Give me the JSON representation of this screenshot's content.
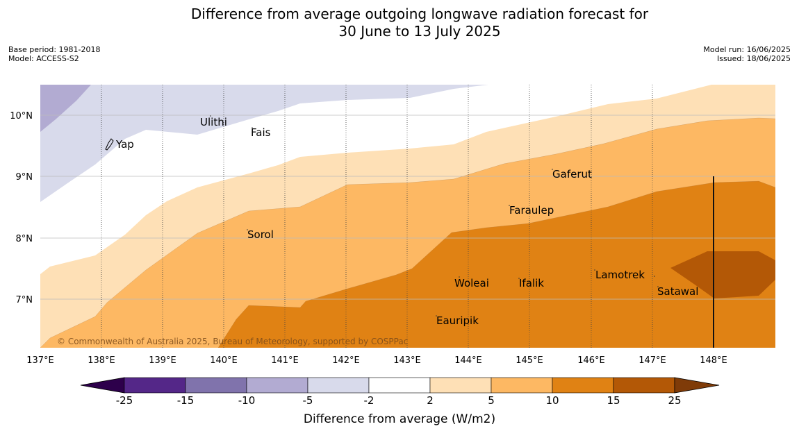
{
  "header": {
    "title_line1": "Difference from average outgoing longwave radiation forecast for",
    "title_line2": "30 June to 13 July 2025",
    "base_period": "Base period: 1981-2018",
    "model": "Model: ACCESS-S2",
    "model_run": "Model run: 16/06/2025",
    "issued": "Issued: 18/06/2025"
  },
  "map": {
    "lon_ticks": [
      "137°E",
      "138°E",
      "139°E",
      "140°E",
      "141°E",
      "142°E",
      "143°E",
      "144°E",
      "145°E",
      "146°E",
      "147°E",
      "148°E"
    ],
    "lat_ticks": [
      "10°N",
      "9°N",
      "8°N",
      "7°N"
    ],
    "places": [
      {
        "name": "Ulithi"
      },
      {
        "name": "Fais"
      },
      {
        "name": "Yap"
      },
      {
        "name": "Gaferut"
      },
      {
        "name": "Faraulep"
      },
      {
        "name": "Sorol"
      },
      {
        "name": "Woleai"
      },
      {
        "name": "Ifalik"
      },
      {
        "name": "Lamotrek"
      },
      {
        "name": "Satawal"
      },
      {
        "name": "Eauripik"
      }
    ],
    "copyright": "© Commonwealth of Australia 2025, Bureau of Meteorology, supported by COSPPac"
  },
  "colorbar": {
    "title": "Difference from average (W/m2)",
    "labels": [
      "-25",
      "-15",
      "-10",
      "-5",
      "-2",
      "2",
      "5",
      "10",
      "15",
      "25"
    ],
    "colors": [
      "#2d004b",
      "#542788",
      "#8073ac",
      "#b2abd2",
      "#d8daeb",
      "#ffffff",
      "#fee0b6",
      "#fdb863",
      "#e08214",
      "#b35806",
      "#7f3b08"
    ]
  }
}
